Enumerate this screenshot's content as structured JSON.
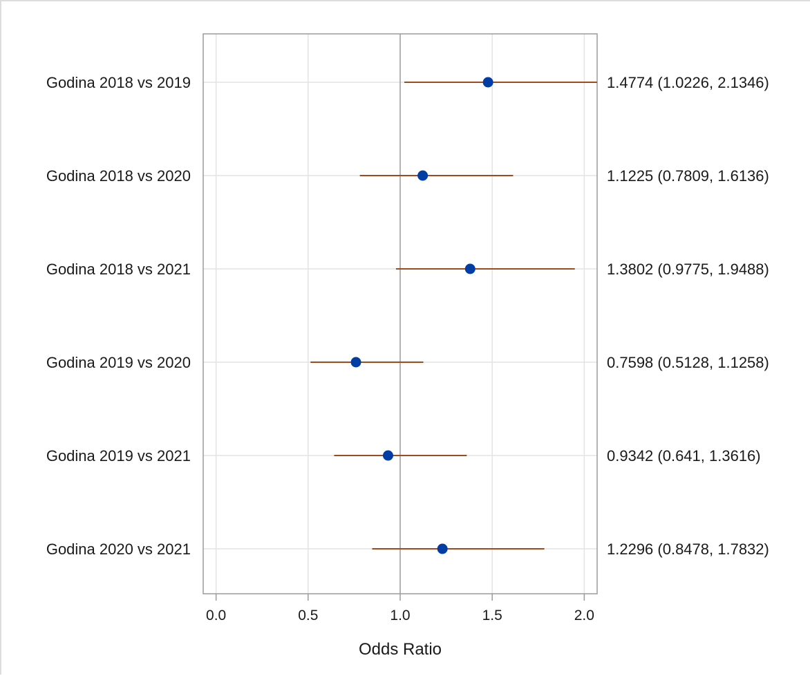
{
  "chart_data": {
    "type": "scatter",
    "subtype": "forest-plot",
    "xlabel": "Odds Ratio",
    "xlim": [
      -0.07,
      2.07
    ],
    "xticks": [
      0.0,
      0.5,
      1.0,
      1.5,
      2.0
    ],
    "xtick_labels": [
      "0.0",
      "0.5",
      "1.0",
      "1.5",
      "2.0"
    ],
    "reference_line": 1.0,
    "grid": "vertical-and-horizontal",
    "colors": {
      "point": "#003da5",
      "interval": "#a0481e",
      "reference": "#9a9a9a",
      "grid": "#e3e3e3",
      "frame": "#9a9a9a"
    },
    "rows": [
      {
        "label": "Godina 2018 vs 2019",
        "estimate": 1.4774,
        "lower": 1.0226,
        "upper": 2.1346,
        "ci_text": "1.4774 (1.0226, 2.1346)"
      },
      {
        "label": "Godina 2018 vs 2020",
        "estimate": 1.1225,
        "lower": 0.7809,
        "upper": 1.6136,
        "ci_text": "1.1225 (0.7809, 1.6136)"
      },
      {
        "label": "Godina 2018 vs 2021",
        "estimate": 1.3802,
        "lower": 0.9775,
        "upper": 1.9488,
        "ci_text": "1.3802 (0.9775, 1.9488)"
      },
      {
        "label": "Godina 2019 vs 2020",
        "estimate": 0.7598,
        "lower": 0.5128,
        "upper": 1.1258,
        "ci_text": "0.7598 (0.5128, 1.1258)"
      },
      {
        "label": "Godina 2019 vs 2021",
        "estimate": 0.9342,
        "lower": 0.641,
        "upper": 1.3616,
        "ci_text": "0.9342 (0.641, 1.3616)"
      },
      {
        "label": "Godina 2020 vs 2021",
        "estimate": 1.2296,
        "lower": 0.8478,
        "upper": 1.7832,
        "ci_text": "1.2296 (0.8478, 1.7832)"
      }
    ]
  }
}
